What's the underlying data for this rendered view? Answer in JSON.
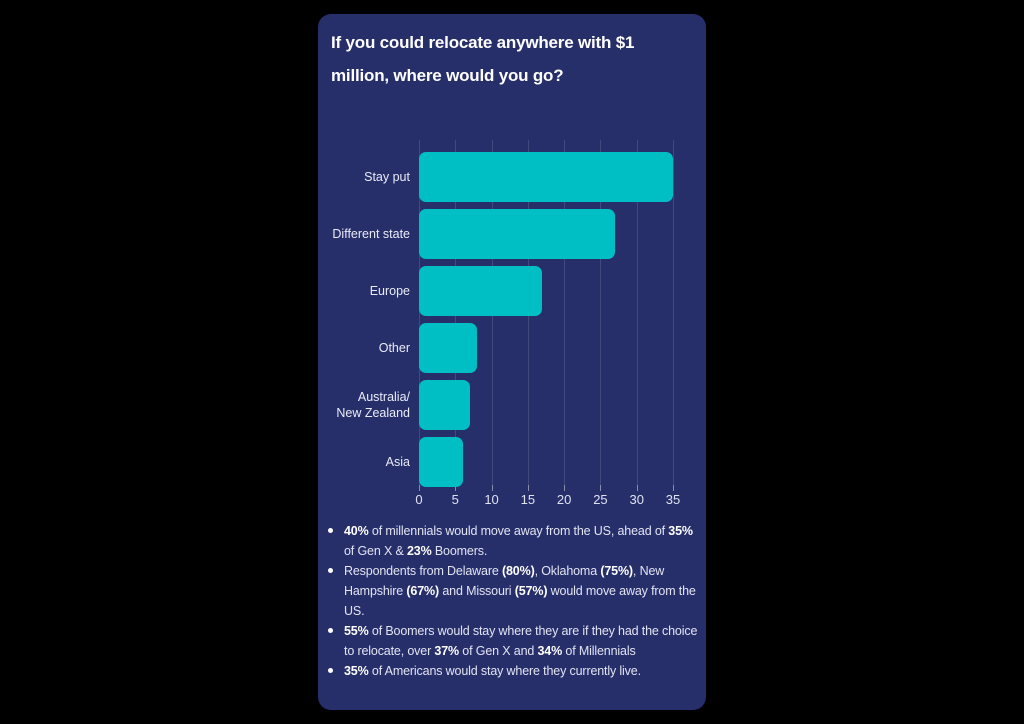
{
  "card": {
    "title": "If you could relocate anywhere with $1 million, where would you go?",
    "background_color": "#272f6b",
    "title_color": "#ffffff",
    "accent_color": "#00bfc4"
  },
  "chart_data": {
    "type": "bar",
    "orientation": "horizontal",
    "title": "If you could relocate anywhere with $1 million, where would you go?",
    "categories": [
      "Stay put",
      "Different state",
      "Europe",
      "Other",
      "Australia/\nNew Zealand",
      "Asia"
    ],
    "values": [
      35,
      27,
      17,
      8,
      7,
      6
    ],
    "xlabel": "",
    "ylabel": "",
    "xlim": [
      0,
      35
    ],
    "xticks": [
      0,
      5,
      10,
      15,
      20,
      25,
      30,
      35
    ],
    "grid": true,
    "legend": false,
    "bar_color": "#00bfc4"
  },
  "bullets": [
    [
      {
        "t": "40%",
        "b": true
      },
      {
        "t": " of millennials would move away from the US, ahead of ",
        "b": false
      },
      {
        "t": "35%",
        "b": true
      },
      {
        "t": " of Gen X & ",
        "b": false
      },
      {
        "t": "23%",
        "b": true
      },
      {
        "t": " Boomers.",
        "b": false
      }
    ],
    [
      {
        "t": "Respondents from Delaware ",
        "b": false
      },
      {
        "t": "(80%)",
        "b": true
      },
      {
        "t": ", Oklahoma ",
        "b": false
      },
      {
        "t": "(75%)",
        "b": true
      },
      {
        "t": ", New Hampshire ",
        "b": false
      },
      {
        "t": "(67%)",
        "b": true
      },
      {
        "t": " and Missouri ",
        "b": false
      },
      {
        "t": "(57%)",
        "b": true
      },
      {
        "t": " would move away from the US.",
        "b": false
      }
    ],
    [
      {
        "t": "55%",
        "b": true
      },
      {
        "t": " of Boomers would stay where they are if they had the choice to relocate, over ",
        "b": false
      },
      {
        "t": "37%",
        "b": true
      },
      {
        "t": " of Gen X and ",
        "b": false
      },
      {
        "t": "34%",
        "b": true
      },
      {
        "t": " of Millennials",
        "b": false
      }
    ],
    [
      {
        "t": "35%",
        "b": true
      },
      {
        "t": " of Americans would stay where they currently live.",
        "b": false
      }
    ]
  ]
}
